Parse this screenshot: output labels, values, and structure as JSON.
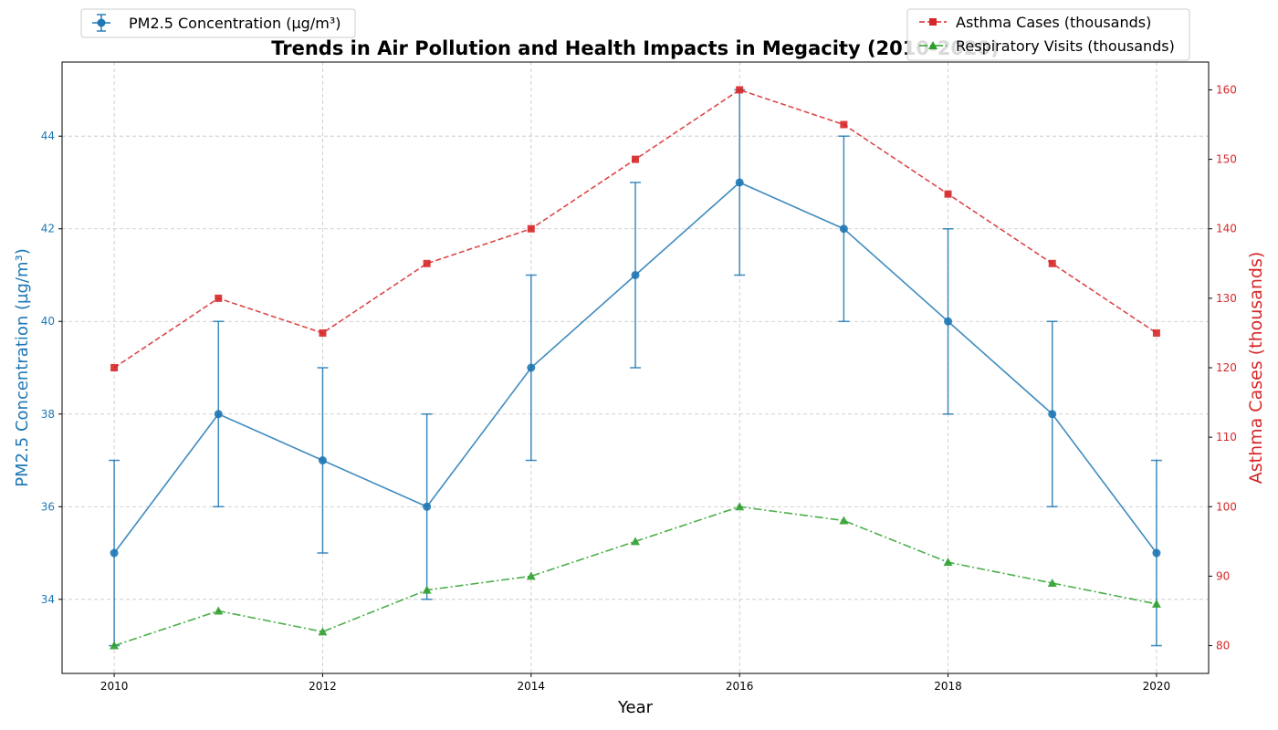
{
  "chart_data": {
    "type": "line",
    "title": "Trends in Air Pollution and Health Impacts in Megacity (2010-2020)",
    "xlabel": "Year",
    "ylabel_left": "PM2.5 Concentration (µg/m³)",
    "ylabel_right": "Asthma Cases (thousands)",
    "x": [
      2010,
      2011,
      2012,
      2013,
      2014,
      2015,
      2016,
      2017,
      2018,
      2019,
      2020
    ],
    "x_ticks": [
      "2010",
      "2012",
      "2014",
      "2016",
      "2018",
      "2020"
    ],
    "y_left_ticks": [
      "34",
      "36",
      "38",
      "40",
      "42",
      "44"
    ],
    "y_right_ticks": [
      "80",
      "90",
      "100",
      "110",
      "120",
      "130",
      "140",
      "150",
      "160"
    ],
    "xlim": [
      2009.5,
      2020.5
    ],
    "ylim_left": [
      32.4,
      45.6
    ],
    "ylim_right": [
      76.0,
      164.0
    ],
    "grid": true,
    "series": [
      {
        "name": "PM2.5 Concentration (µg/m³)",
        "axis": "left",
        "color": "#1f77b4",
        "linestyle": "solid",
        "marker": "circle",
        "values": [
          35,
          38,
          37,
          36,
          39,
          41,
          43,
          42,
          40,
          38,
          35
        ],
        "error": [
          2,
          2,
          2,
          2,
          2,
          2,
          2,
          2,
          2,
          2,
          2
        ]
      },
      {
        "name": "Asthma Cases (thousands)",
        "axis": "right",
        "color": "#d62728",
        "linestyle": "dashed",
        "marker": "square",
        "values": [
          120,
          130,
          125,
          135,
          140,
          150,
          160,
          155,
          145,
          135,
          125
        ]
      },
      {
        "name": "Respiratory Visits (thousands)",
        "axis": "right",
        "color": "#2ca02c",
        "linestyle": "dashdot",
        "marker": "triangle",
        "values": [
          80,
          85,
          82,
          88,
          90,
          95,
          100,
          98,
          92,
          89,
          86
        ]
      }
    ],
    "legends": [
      {
        "placement": "top-left",
        "entries": [
          "PM2.5 Concentration (µg/m³)"
        ]
      },
      {
        "placement": "top-right",
        "entries": [
          "Asthma Cases (thousands)",
          "Respiratory Visits (thousands)"
        ]
      }
    ]
  }
}
